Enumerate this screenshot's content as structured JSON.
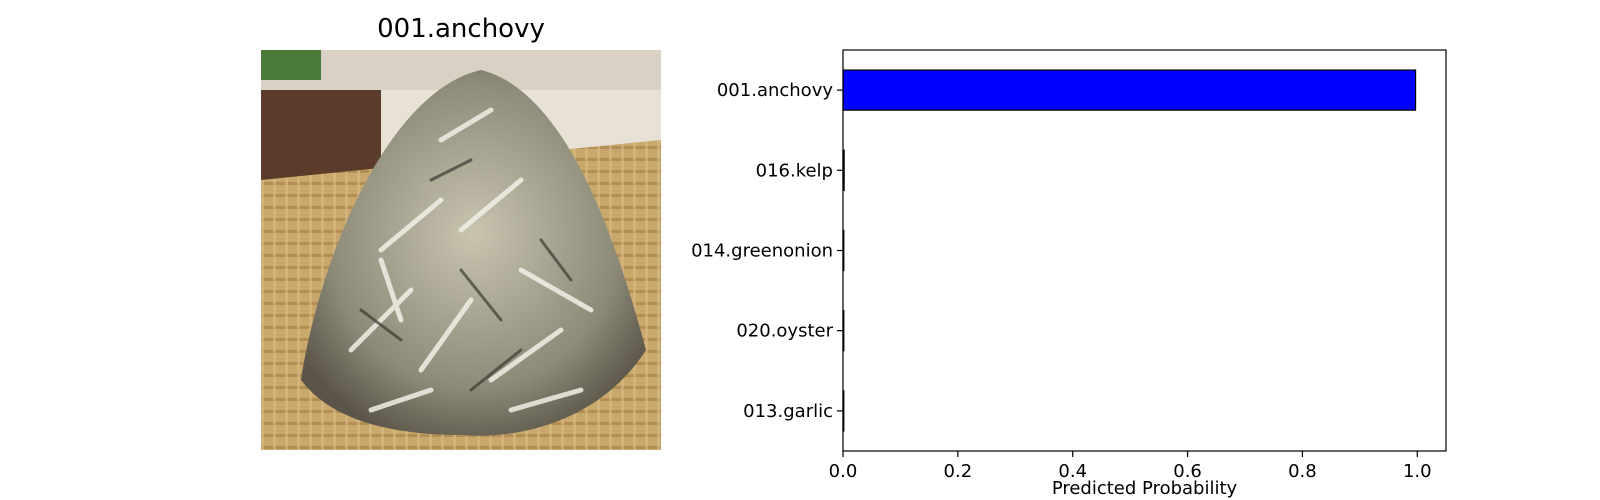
{
  "image_panel": {
    "title": "001.anchovy",
    "photo_subject": "pile of dried anchovies on a woven bamboo mat"
  },
  "chart_data": {
    "type": "bar",
    "orientation": "horizontal",
    "categories": [
      "001.anchovy",
      "016.kelp",
      "014.greenonion",
      "020.oyster",
      "013.garlic"
    ],
    "values": [
      0.997,
      0.002,
      0.001,
      0.0003,
      0.0002
    ],
    "xlabel": "Predicted Probability",
    "ylabel": "",
    "title": "",
    "xlim": [
      0.0,
      1.05
    ],
    "xticks": [
      "0.0",
      "0.2",
      "0.4",
      "0.6",
      "0.8",
      "1.0"
    ],
    "bar_color": "#0000ff",
    "edge_color": "#000000",
    "grid": false,
    "legend": "none"
  }
}
